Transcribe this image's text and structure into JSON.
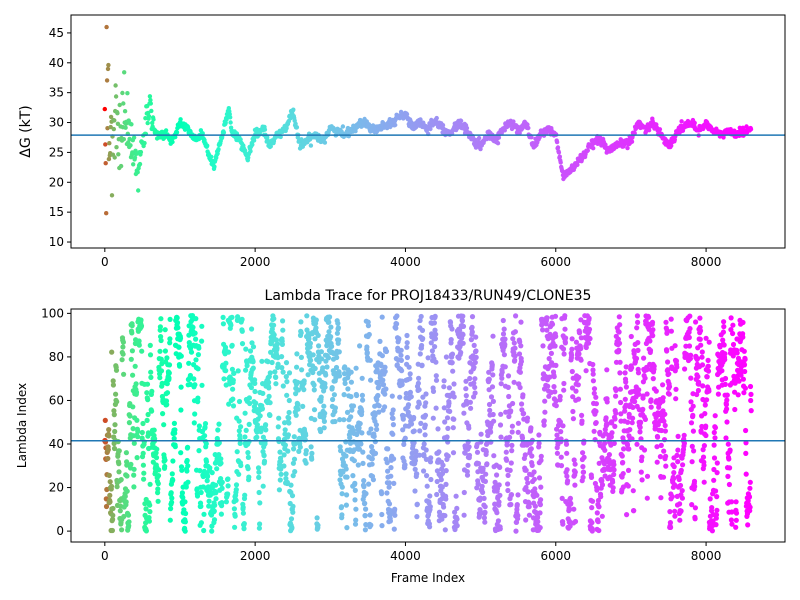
{
  "chart_data": [
    {
      "type": "scatter",
      "title": "",
      "xlabel": "",
      "ylabel": "ΔG (kT)",
      "xlim": [
        -450,
        9050
      ],
      "ylim": [
        9,
        48
      ],
      "xticks": [
        0,
        2000,
        4000,
        6000,
        8000
      ],
      "yticks": [
        10,
        15,
        20,
        25,
        30,
        35,
        40,
        45
      ],
      "hline": 27.9,
      "hline_color": "#1f77b4",
      "colormap": "rainbow, red at frame 0 to purple at last frame",
      "x_max": 8600,
      "trace_profile": [
        [
          0,
          28
        ],
        [
          50,
          30
        ],
        [
          100,
          27
        ],
        [
          150,
          32
        ],
        [
          200,
          28
        ],
        [
          250,
          30
        ],
        [
          300,
          29
        ],
        [
          350,
          27
        ],
        [
          400,
          24
        ],
        [
          450,
          22
        ],
        [
          500,
          27
        ],
        [
          550,
          30
        ],
        [
          600,
          32
        ],
        [
          650,
          29
        ],
        [
          700,
          28
        ],
        [
          800,
          28
        ],
        [
          900,
          27
        ],
        [
          1000,
          30
        ],
        [
          1100,
          29
        ],
        [
          1200,
          27
        ],
        [
          1300,
          28
        ],
        [
          1400,
          24
        ],
        [
          1450,
          22.5
        ],
        [
          1500,
          25
        ],
        [
          1600,
          30
        ],
        [
          1650,
          32
        ],
        [
          1700,
          28
        ],
        [
          1800,
          27
        ],
        [
          1900,
          24
        ],
        [
          2000,
          28
        ],
        [
          2100,
          29
        ],
        [
          2200,
          26
        ],
        [
          2300,
          28
        ],
        [
          2400,
          29
        ],
        [
          2500,
          32
        ],
        [
          2600,
          26
        ],
        [
          2700,
          27
        ],
        [
          2800,
          28
        ],
        [
          2900,
          27
        ],
        [
          3000,
          29
        ],
        [
          3200,
          28
        ],
        [
          3400,
          30
        ],
        [
          3600,
          29
        ],
        [
          3800,
          30
        ],
        [
          4000,
          31.5
        ],
        [
          4100,
          29
        ],
        [
          4200,
          30
        ],
        [
          4300,
          29
        ],
        [
          4400,
          30.5
        ],
        [
          4500,
          29
        ],
        [
          4600,
          28
        ],
        [
          4700,
          30
        ],
        [
          4800,
          29
        ],
        [
          4900,
          27
        ],
        [
          5000,
          26
        ],
        [
          5100,
          28
        ],
        [
          5200,
          27
        ],
        [
          5300,
          29
        ],
        [
          5400,
          30
        ],
        [
          5500,
          28.5
        ],
        [
          5600,
          30
        ],
        [
          5700,
          26
        ],
        [
          5800,
          28
        ],
        [
          5900,
          29
        ],
        [
          6000,
          28
        ],
        [
          6050,
          24
        ],
        [
          6100,
          21
        ],
        [
          6200,
          22
        ],
        [
          6300,
          23.5
        ],
        [
          6400,
          25
        ],
        [
          6500,
          26.5
        ],
        [
          6600,
          27
        ],
        [
          6700,
          25
        ],
        [
          6800,
          26
        ],
        [
          6900,
          26.5
        ],
        [
          7000,
          27
        ],
        [
          7100,
          30
        ],
        [
          7200,
          29
        ],
        [
          7300,
          30
        ],
        [
          7400,
          28
        ],
        [
          7500,
          26
        ],
        [
          7600,
          28
        ],
        [
          7700,
          29.5
        ],
        [
          7800,
          30
        ],
        [
          7900,
          28.5
        ],
        [
          8000,
          30
        ],
        [
          8100,
          28.5
        ],
        [
          8200,
          28
        ],
        [
          8300,
          28.5
        ],
        [
          8400,
          28
        ],
        [
          8500,
          28.5
        ],
        [
          8600,
          29
        ]
      ],
      "early_spread": {
        "x_end": 650,
        "y_min": 9.8,
        "y_max": 47.5
      }
    },
    {
      "type": "scatter",
      "title": "Lambda Trace for PROJ18433/RUN49/CLONE35",
      "xlabel": "Frame Index",
      "ylabel": "Lambda Index",
      "xlim": [
        -450,
        9050
      ],
      "ylim": [
        -5,
        102
      ],
      "xticks": [
        0,
        2000,
        4000,
        6000,
        8000
      ],
      "yticks": [
        0,
        20,
        40,
        60,
        80,
        100
      ],
      "hline": 41.5,
      "hline_color": "#1f77b4",
      "colormap": "rainbow, red at frame 0 to purple at last frame",
      "x_max": 8600,
      "lambda_range": [
        0,
        99
      ],
      "point_count": 3000
    }
  ]
}
